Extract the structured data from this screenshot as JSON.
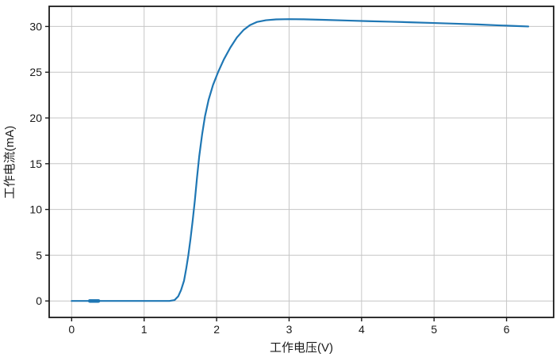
{
  "figure": {
    "background": "#ffffff"
  },
  "chart_data": {
    "type": "line",
    "title": "",
    "xlabel": "工作电压(V)",
    "ylabel": "工作电流(mA)",
    "xticks": [
      0,
      1,
      2,
      3,
      4,
      5,
      6
    ],
    "yticks": [
      0,
      5,
      10,
      15,
      20,
      25,
      30
    ],
    "xlim": [
      -0.31,
      6.65
    ],
    "ylim": [
      -1.8,
      32.2
    ],
    "grid": true,
    "legend_position": "none",
    "series": [
      {
        "name": "工作电流",
        "color": "#1f77b4",
        "points": [
          [
            0.0,
            0
          ],
          [
            0.2,
            0
          ],
          [
            0.4,
            0
          ],
          [
            0.7,
            0
          ],
          [
            1.0,
            0
          ],
          [
            1.2,
            0
          ],
          [
            1.35,
            0
          ],
          [
            1.42,
            0.1
          ],
          [
            1.47,
            0.5
          ],
          [
            1.51,
            1.2
          ],
          [
            1.55,
            2.2
          ],
          [
            1.58,
            3.5
          ],
          [
            1.61,
            5.0
          ],
          [
            1.64,
            6.8
          ],
          [
            1.67,
            8.8
          ],
          [
            1.7,
            11.0
          ],
          [
            1.73,
            13.5
          ],
          [
            1.76,
            15.8
          ],
          [
            1.8,
            18.2
          ],
          [
            1.84,
            20.2
          ],
          [
            1.89,
            22.0
          ],
          [
            1.95,
            23.6
          ],
          [
            2.02,
            25.0
          ],
          [
            2.1,
            26.4
          ],
          [
            2.19,
            27.7
          ],
          [
            2.28,
            28.8
          ],
          [
            2.37,
            29.6
          ],
          [
            2.46,
            30.15
          ],
          [
            2.56,
            30.5
          ],
          [
            2.68,
            30.68
          ],
          [
            2.82,
            30.77
          ],
          [
            3.0,
            30.8
          ],
          [
            3.2,
            30.78
          ],
          [
            3.5,
            30.72
          ],
          [
            3.8,
            30.65
          ],
          [
            4.1,
            30.58
          ],
          [
            4.4,
            30.52
          ],
          [
            4.7,
            30.45
          ],
          [
            5.0,
            30.38
          ],
          [
            5.3,
            30.3
          ],
          [
            5.6,
            30.22
          ],
          [
            5.9,
            30.12
          ],
          [
            6.1,
            30.06
          ],
          [
            6.3,
            30.0
          ]
        ]
      }
    ],
    "emphasis_segment": {
      "x1": 0.25,
      "x2": 0.37,
      "y": 0
    }
  },
  "colors": {
    "line": "#1f77b4",
    "grid": "#c6c6c6",
    "spine": "#1a1a1a",
    "text": "#1a1a1a",
    "background": "#ffffff"
  }
}
